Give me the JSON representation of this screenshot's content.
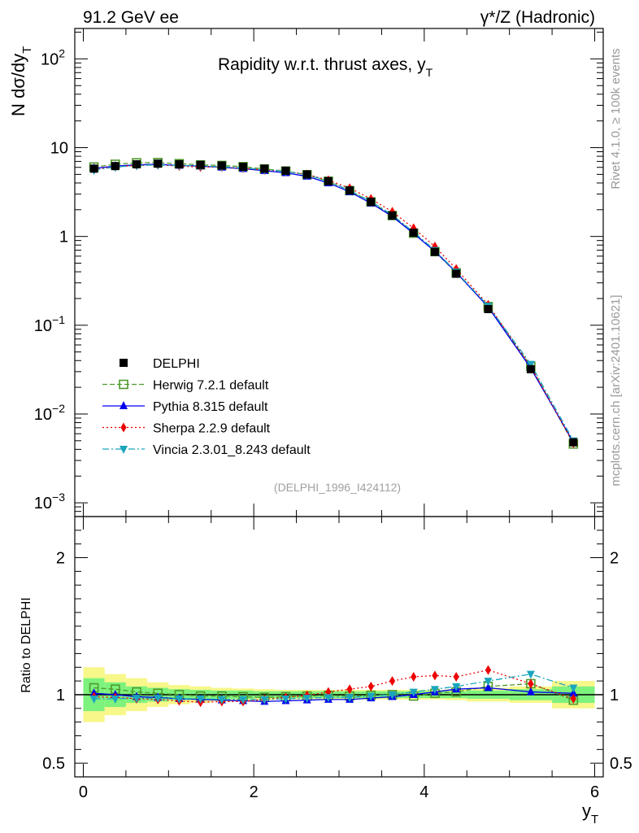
{
  "header": {
    "left": "91.2 GeV ee",
    "right": "γ*/Z (Hadronic)"
  },
  "title": "Rapidity w.r.t. thrust axes, y",
  "title_sub": "T",
  "side_labels": {
    "rivet": "Rivet 4.1.0, ≥ 100k events",
    "mcplots": "mcplots.cern.ch [arXiv:2401.10621]"
  },
  "analysis_id": "(DELPHI_1996_I424112)",
  "colors": {
    "data": "#000000",
    "herwig": "#4f9a2a",
    "pythia": "#0000ee",
    "sherpa": "#ee0000",
    "vincia": "#1ba5bd",
    "band_inner": "#7df27d",
    "band_outer": "#f7f78a"
  },
  "chart_data": {
    "type": "line",
    "xlabel": "y",
    "xlabel_sub": "T",
    "ylabel_main": "N  dσ/dy",
    "ylabel_main_sub": "T",
    "ylabel_ratio": "Ratio to DELPHI",
    "xlim": [
      -0.1,
      6.1
    ],
    "ylim_main": [
      0.0007,
      220
    ],
    "ylim_ratio": [
      0.4,
      2.3
    ],
    "x_ticks": [
      0,
      2,
      4,
      6
    ],
    "x_tick_labels": [
      "0",
      "2",
      "4",
      "6"
    ],
    "y_ticks_main": [
      0.001,
      0.01,
      0.1,
      1,
      10,
      100
    ],
    "y_tick_labels_main": [
      {
        "base": "10",
        "exp": "−3"
      },
      {
        "base": "10",
        "exp": "−2"
      },
      {
        "base": "10",
        "exp": "−1"
      },
      {
        "base": "1",
        "exp": ""
      },
      {
        "base": "10",
        "exp": ""
      },
      {
        "base": "10",
        "exp": "2"
      }
    ],
    "y_ticks_ratio": [
      0.5,
      1,
      2
    ],
    "y_tick_labels_ratio": [
      "0.5",
      "1",
      "2"
    ],
    "x": [
      0.125,
      0.375,
      0.625,
      0.875,
      1.125,
      1.375,
      1.625,
      1.875,
      2.125,
      2.375,
      2.625,
      2.875,
      3.125,
      3.375,
      3.625,
      3.875,
      4.125,
      4.375,
      4.75,
      5.25,
      5.75
    ],
    "band_edges": [
      0,
      0.25,
      0.5,
      0.75,
      1.0,
      1.25,
      1.5,
      1.75,
      2.0,
      2.25,
      2.5,
      2.75,
      3.0,
      3.25,
      3.5,
      3.75,
      4.0,
      4.25,
      4.5,
      5.0,
      5.5,
      6.0
    ],
    "band_inner": [
      0.12,
      0.09,
      0.06,
      0.05,
      0.04,
      0.035,
      0.03,
      0.03,
      0.025,
      0.025,
      0.025,
      0.025,
      0.025,
      0.025,
      0.025,
      0.025,
      0.025,
      0.025,
      0.03,
      0.04,
      0.06
    ],
    "band_outer": [
      0.2,
      0.15,
      0.12,
      0.09,
      0.07,
      0.06,
      0.05,
      0.045,
      0.04,
      0.035,
      0.035,
      0.035,
      0.035,
      0.035,
      0.035,
      0.035,
      0.035,
      0.04,
      0.05,
      0.06,
      0.1
    ],
    "series": [
      {
        "name": "DELPHI",
        "key": "data",
        "marker": "square",
        "values": [
          5.8,
          6.2,
          6.5,
          6.6,
          6.5,
          6.4,
          6.3,
          6.1,
          5.8,
          5.5,
          5.0,
          4.2,
          3.3,
          2.45,
          1.72,
          1.1,
          0.67,
          0.38,
          0.152,
          0.032,
          0.0048
        ],
        "ratio": [
          1,
          1,
          1,
          1,
          1,
          1,
          1,
          1,
          1,
          1,
          1,
          1,
          1,
          1,
          1,
          1,
          1,
          1,
          1,
          1,
          0.97
        ]
      },
      {
        "name": "Herwig 7.2.1 default",
        "key": "herwig",
        "marker": "open-square",
        "values": [
          6.05,
          6.5,
          6.75,
          6.8,
          6.6,
          6.4,
          6.3,
          6.1,
          5.75,
          5.45,
          4.95,
          4.18,
          3.28,
          2.45,
          1.72,
          1.09,
          0.675,
          0.39,
          0.162,
          0.0345,
          0.0046
        ],
        "ratio": [
          1.05,
          1.04,
          1.02,
          1.01,
          1.0,
          0.99,
          0.99,
          0.985,
          0.98,
          0.985,
          0.99,
          0.995,
          0.99,
          0.995,
          1.0,
          0.99,
          1.01,
          1.02,
          1.06,
          1.08,
          0.96
        ]
      },
      {
        "name": "Pythia 8.315 default",
        "key": "pythia",
        "marker": "triangle-up",
        "values": [
          5.85,
          6.2,
          6.4,
          6.5,
          6.3,
          6.2,
          6.0,
          5.8,
          5.5,
          5.2,
          4.75,
          4.0,
          3.18,
          2.37,
          1.68,
          1.08,
          0.68,
          0.395,
          0.16,
          0.0328,
          0.0048
        ],
        "ratio": [
          1.01,
          1.0,
          0.985,
          0.98,
          0.97,
          0.965,
          0.96,
          0.955,
          0.95,
          0.955,
          0.96,
          0.965,
          0.965,
          0.975,
          0.985,
          1.0,
          1.02,
          1.04,
          1.05,
          1.02,
          1.01
        ]
      },
      {
        "name": "Sherpa 2.2.9 default",
        "key": "sherpa",
        "marker": "diamond",
        "values": [
          5.7,
          6.1,
          6.3,
          6.4,
          6.2,
          6.05,
          6.05,
          5.85,
          5.6,
          5.4,
          5.0,
          4.3,
          3.5,
          2.65,
          1.9,
          1.24,
          0.77,
          0.43,
          0.17,
          0.0345,
          0.0047
        ],
        "ratio": [
          0.985,
          0.98,
          0.97,
          0.965,
          0.955,
          0.945,
          0.95,
          0.95,
          0.965,
          0.98,
          0.995,
          1.02,
          1.04,
          1.06,
          1.1,
          1.13,
          1.14,
          1.13,
          1.18,
          1.08,
          0.97
        ]
      },
      {
        "name": "Vincia 2.3.01_8.243 default",
        "key": "vincia",
        "marker": "triangle-down",
        "values": [
          5.6,
          6.05,
          6.3,
          6.4,
          6.3,
          6.2,
          6.1,
          5.9,
          5.65,
          5.4,
          4.95,
          4.2,
          3.3,
          2.48,
          1.75,
          1.12,
          0.7,
          0.4,
          0.165,
          0.0365,
          0.005
        ],
        "ratio": [
          0.97,
          0.97,
          0.975,
          0.975,
          0.97,
          0.97,
          0.965,
          0.965,
          0.965,
          0.97,
          0.975,
          0.98,
          0.98,
          0.99,
          1.0,
          1.02,
          1.04,
          1.06,
          1.1,
          1.15,
          1.05
        ]
      }
    ]
  }
}
